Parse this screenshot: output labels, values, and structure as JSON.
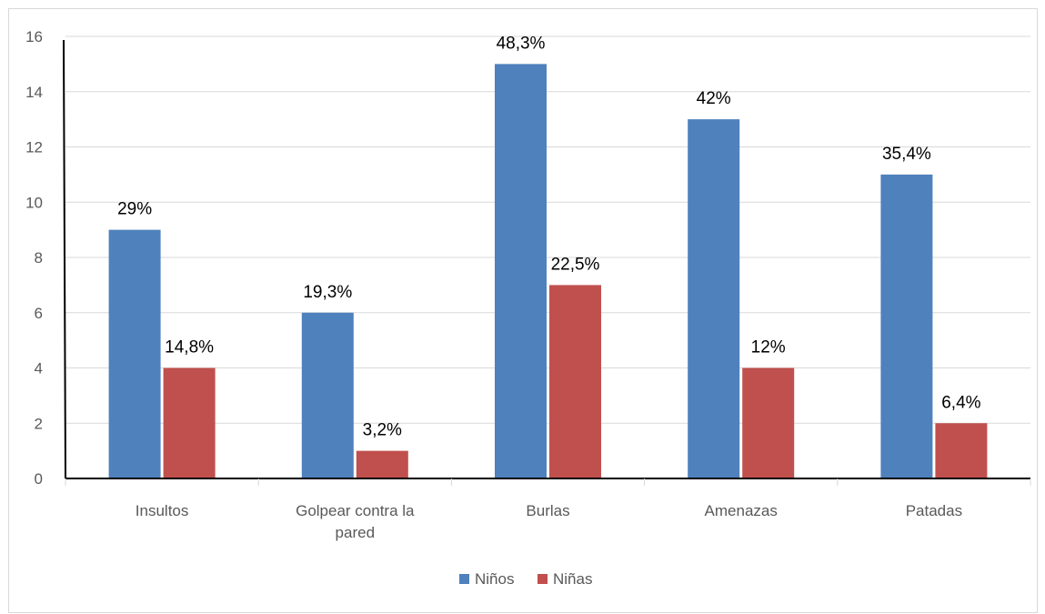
{
  "chart_data": {
    "type": "bar",
    "categories": [
      [
        "Insultos"
      ],
      [
        "Golpear contra la",
        "pared"
      ],
      [
        "Burlas"
      ],
      [
        "Amenazas"
      ],
      [
        "Patadas"
      ]
    ],
    "series": [
      {
        "name": "Niños",
        "color": "#4f81bd",
        "values": [
          9,
          6,
          15,
          13,
          11
        ],
        "labels": [
          "29%",
          "19,3%",
          "48,3%",
          "42%",
          "35,4%"
        ]
      },
      {
        "name": "Niñas",
        "color": "#c0504d",
        "values": [
          4,
          1,
          7,
          4,
          2
        ],
        "labels": [
          "14,8%",
          "3,2%",
          "22,5%",
          "12%",
          "6,4%"
        ]
      }
    ],
    "y_ticks": [
      "0",
      "2",
      "4",
      "6",
      "8",
      "10",
      "12",
      "14",
      "16"
    ],
    "ylim": [
      0,
      16
    ],
    "grid": true,
    "legend_position": "bottom"
  }
}
